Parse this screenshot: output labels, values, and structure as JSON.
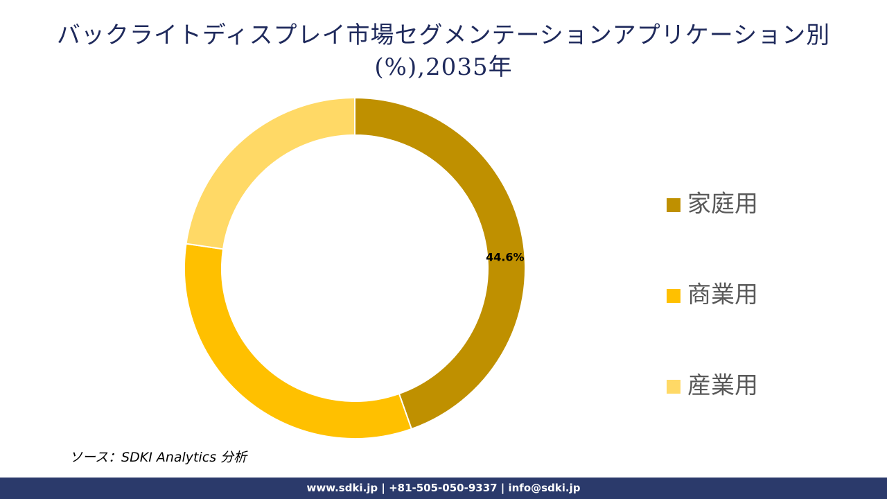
{
  "chart_data": {
    "type": "donut",
    "title": [
      "バックライトディスプレイ市場セグメンテーションアプリケーション別",
      "(%),2035年"
    ],
    "categories": [
      "家庭用",
      "商業用",
      "産業用"
    ],
    "values": [
      44.6,
      32.7,
      22.7
    ],
    "value_labels": [
      "44.6%",
      null,
      null
    ],
    "colors": [
      "#BF9000",
      "#FFC000",
      "#FFD966"
    ],
    "legend": "right"
  },
  "source": "ソース：SDKI Analytics 分析",
  "footer": "www.sdki.jp | +81-505-050-9337 | info@sdki.jp"
}
